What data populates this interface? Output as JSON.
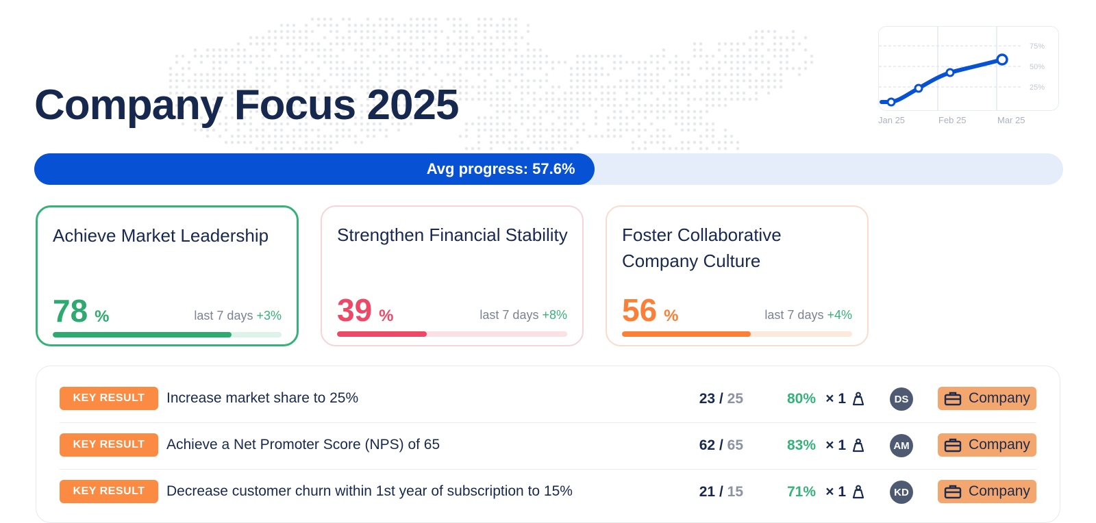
{
  "header": {
    "title": "Company Focus 2025"
  },
  "trend_chart": {
    "x_labels": [
      "Jan 25",
      "Feb 25",
      "Mar 25"
    ],
    "y_labels": [
      "75%",
      "50%",
      "25%"
    ],
    "line_color": "#0752d4"
  },
  "progress": {
    "label": "Avg progress: 57.6%",
    "value": 57.6,
    "color": "#0752d4"
  },
  "objectives": [
    {
      "title": "Achieve Market Leadership",
      "percent": "78",
      "percent_value": 78,
      "unit": "%",
      "delta_label": "last 7 days",
      "delta": "+3%",
      "color": "#2ea96f"
    },
    {
      "title": "Strengthen Financial Stability",
      "percent": "39",
      "percent_value": 39,
      "unit": "%",
      "delta_label": "last 7 days",
      "delta": "+8%",
      "color": "#ee4867"
    },
    {
      "title": "Foster Collaborative Company Culture",
      "percent": "56",
      "percent_value": 56,
      "unit": "%",
      "delta_label": "last 7 days",
      "delta": "+4%",
      "color": "#fb7f36"
    }
  ],
  "key_results": [
    {
      "badge": "KEY RESULT",
      "title": "Increase market share to 25%",
      "current": "23",
      "slash": "/",
      "target": "25",
      "percent": "80%",
      "weight": "× 1",
      "weight_icon": "weight-icon",
      "avatar": "DS",
      "team_icon": "briefcase-icon",
      "team": "Company"
    },
    {
      "badge": "KEY RESULT",
      "title": "Achieve a Net Promoter Score (NPS) of 65",
      "current": "62",
      "slash": "/",
      "target": "65",
      "percent": "83%",
      "weight": "× 1",
      "weight_icon": "weight-icon",
      "avatar": "AM",
      "team_icon": "briefcase-icon",
      "team": "Company"
    },
    {
      "badge": "KEY RESULT",
      "title": "Decrease customer churn within 1st year of subscription to 15%",
      "current": "21",
      "slash": "/",
      "target": "15",
      "percent": "71%",
      "weight": "× 1",
      "weight_icon": "weight-icon",
      "avatar": "KD",
      "team_icon": "briefcase-icon",
      "team": "Company"
    }
  ]
}
